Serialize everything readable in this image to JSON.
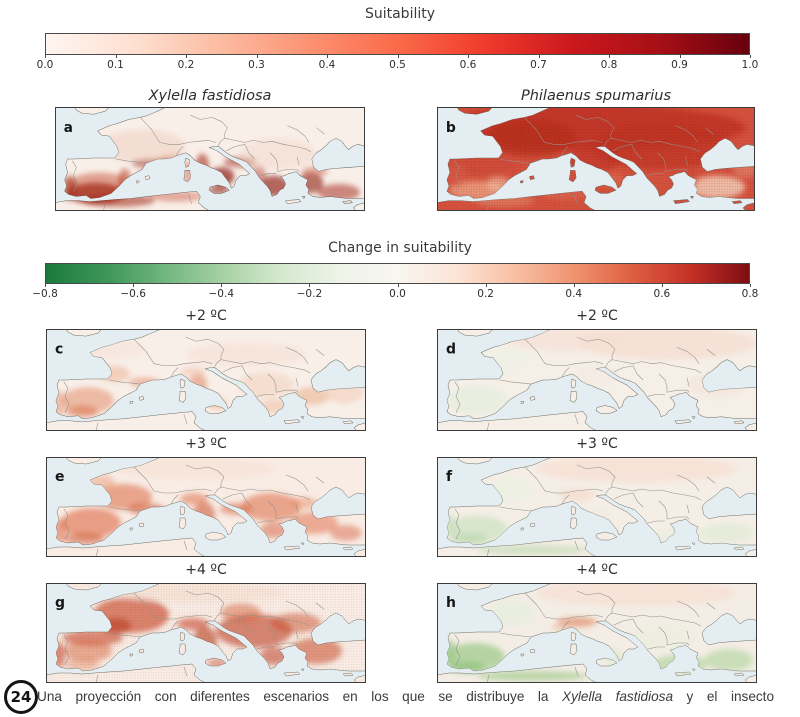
{
  "figure": {
    "sea_color": "#e4eef2",
    "coast_color": "#6e6e63",
    "border_color": "#92928a",
    "suitability_bar": {
      "title": "Suitability",
      "ticks": [
        "0.0",
        "0.1",
        "0.2",
        "0.3",
        "0.4",
        "0.5",
        "0.6",
        "0.7",
        "0.8",
        "0.9",
        "1.0"
      ],
      "colors": [
        "#fff5f0",
        "#fee0d2",
        "#fcbba1",
        "#fc9272",
        "#fb6a4a",
        "#ef3b2c",
        "#cb181d",
        "#a50f15",
        "#67000d"
      ]
    },
    "change_bar": {
      "title": "Change in suitability",
      "ticks": [
        "−0.8",
        "−0.6",
        "−0.4",
        "−0.2",
        "0.0",
        "0.2",
        "0.4",
        "0.6",
        "0.8"
      ],
      "colors": [
        "#1a7a3e",
        "#3d9558",
        "#6fb57e",
        "#a5d0a4",
        "#d4e8cd",
        "#eef3e8",
        "#f8f6f1",
        "#fce4d6",
        "#f8c0a5",
        "#ef9470",
        "#df5f42",
        "#c43127",
        "#7d0d11"
      ]
    },
    "panels": [
      {
        "letter": "a",
        "title": "Xylella fastidiosa",
        "species_title": true,
        "land": "#f9efe9",
        "stipple": 0,
        "blobs": [
          [
            42,
            83,
            30,
            10,
            "#8e1d10",
            0.85
          ],
          [
            46,
            76,
            34,
            13,
            "#c8523a",
            0.5
          ],
          [
            15,
            78,
            7,
            12,
            "#a5301c",
            0.6
          ],
          [
            72,
            71,
            7,
            12,
            "#b5371f",
            0.5
          ],
          [
            99,
            54,
            20,
            4.5,
            "#a5301c",
            0.65
          ],
          [
            120,
            50,
            13,
            4,
            "#c8523a",
            0.5
          ],
          [
            152,
            56,
            7,
            11,
            "#a5301c",
            0.6
          ],
          [
            172,
            67,
            13,
            9,
            "#8e1d10",
            0.7
          ],
          [
            169,
            80,
            11,
            4,
            "#8e1d10",
            0.6
          ],
          [
            137,
            64,
            4,
            12,
            "#c8523a",
            0.45
          ],
          [
            191,
            53,
            17,
            5,
            "#a5301c",
            0.55
          ],
          [
            210,
            64,
            8,
            8,
            "#b5371f",
            0.45
          ],
          [
            226,
            76,
            15,
            10,
            "#8e1d10",
            0.65
          ],
          [
            264,
            73,
            13,
            10,
            "#8e1d10",
            0.6
          ],
          [
            293,
            82,
            22,
            8,
            "#a5301c",
            0.55
          ],
          [
            268,
            62,
            14,
            5,
            "#c8523a",
            0.4
          ],
          [
            65,
            90,
            38,
            6,
            "#a5301c",
            0.6
          ],
          [
            125,
            86,
            28,
            5,
            "#c8523a",
            0.45
          ],
          [
            90,
            38,
            45,
            16,
            "#f0cdbd",
            0.5
          ],
          [
            230,
            45,
            40,
            15,
            "#f2d8c9",
            0.5
          ]
        ]
      },
      {
        "letter": "b",
        "title": "Philaenus spumarius",
        "species_title": true,
        "land": "#d4513d",
        "stipple": 0.45,
        "blobs": [
          [
            150,
            20,
            160,
            22,
            "#c13426",
            0.85
          ],
          [
            95,
            30,
            45,
            18,
            "#b52c1e",
            0.7
          ],
          [
            225,
            38,
            70,
            22,
            "#bf3325",
            0.7
          ],
          [
            160,
            50,
            25,
            14,
            "#c13426",
            0.6
          ],
          [
            45,
            55,
            35,
            10,
            "#cc4935",
            0.6
          ],
          [
            40,
            80,
            28,
            9,
            "#eda788",
            0.75
          ],
          [
            62,
            74,
            12,
            7,
            "#f2c3a6",
            0.6
          ],
          [
            20,
            65,
            10,
            12,
            "#d95e45",
            0.5
          ],
          [
            176,
            70,
            12,
            8,
            "#dd6d50",
            0.55
          ],
          [
            282,
            77,
            28,
            11,
            "#f3d3bb",
            0.8
          ],
          [
            255,
            68,
            8,
            12,
            "#cc4935",
            0.5
          ],
          [
            310,
            60,
            12,
            8,
            "#e8957a",
            0.5
          ],
          [
            68,
            90,
            30,
            6,
            "#e48a6c",
            0.6
          ],
          [
            130,
            84,
            25,
            5,
            "#dd7257",
            0.5
          ]
        ]
      },
      {
        "letter": "c",
        "title": "+2 ºC",
        "species_title": false,
        "land": "#f8efe9",
        "stipple": 0,
        "blobs": [
          [
            42,
            70,
            26,
            13,
            "#e4906c",
            0.55
          ],
          [
            36,
            81,
            16,
            6,
            "#d86a44",
            0.5
          ],
          [
            14,
            73,
            6,
            12,
            "#e4906c",
            0.5
          ],
          [
            68,
            44,
            16,
            8,
            "#efb497",
            0.55
          ],
          [
            98,
            52,
            15,
            5,
            "#e4906c",
            0.5
          ],
          [
            152,
            55,
            9,
            12,
            "#dd7e57",
            0.5
          ],
          [
            147,
            42,
            13,
            5,
            "#f2c3ab",
            0.5
          ],
          [
            171,
            73,
            10,
            6,
            "#e9a179",
            0.45
          ],
          [
            220,
            55,
            28,
            13,
            "#f4d3c0",
            0.6
          ],
          [
            265,
            66,
            18,
            9,
            "#eaa981",
            0.5
          ],
          [
            298,
            62,
            20,
            11,
            "#f2c8ae",
            0.5
          ],
          [
            228,
            76,
            13,
            7,
            "#eaa981",
            0.4
          ],
          [
            60,
            20,
            40,
            10,
            "#f7e3d8",
            0.6
          ],
          [
            200,
            25,
            60,
            12,
            "#f7e0d3",
            0.6
          ]
        ]
      },
      {
        "letter": "d",
        "title": "+2 ºC",
        "species_title": false,
        "land": "#f5efe8",
        "stipple": 0,
        "blobs": [
          [
            230,
            14,
            90,
            16,
            "#f6ddd2",
            0.8
          ],
          [
            130,
            10,
            60,
            12,
            "#f6ddd2",
            0.6
          ],
          [
            40,
            70,
            30,
            14,
            "#e6eedd",
            0.8
          ],
          [
            70,
            30,
            20,
            12,
            "#ebf1e4",
            0.6
          ],
          [
            280,
            55,
            30,
            12,
            "#f4e3d9",
            0.6
          ],
          [
            160,
            45,
            20,
            10,
            "#f3e8e0",
            0.5
          ]
        ]
      },
      {
        "letter": "e",
        "title": "+3 ºC",
        "species_title": false,
        "land": "#f8ece4",
        "stipple": 0,
        "blobs": [
          [
            45,
            66,
            30,
            15,
            "#dd6a44",
            0.6
          ],
          [
            38,
            82,
            20,
            6,
            "#cc4f2e",
            0.5
          ],
          [
            14,
            74,
            7,
            12,
            "#dd6a44",
            0.55
          ],
          [
            78,
            40,
            28,
            13,
            "#dd6a44",
            0.55
          ],
          [
            100,
            52,
            18,
            6,
            "#cc4f2e",
            0.5
          ],
          [
            56,
            26,
            13,
            8,
            "#e9a07c",
            0.5
          ],
          [
            148,
            42,
            14,
            6,
            "#dd6a44",
            0.5
          ],
          [
            158,
            58,
            11,
            13,
            "#cc4f2e",
            0.55
          ],
          [
            190,
            52,
            16,
            6,
            "#d65c3c",
            0.5
          ],
          [
            225,
            50,
            30,
            14,
            "#dd6a44",
            0.55
          ],
          [
            228,
            73,
            14,
            8,
            "#d65c3c",
            0.5
          ],
          [
            268,
            66,
            24,
            11,
            "#dd6a44",
            0.5
          ],
          [
            300,
            76,
            16,
            8,
            "#d65c3c",
            0.45
          ],
          [
            258,
            46,
            14,
            6,
            "#e68a62",
            0.45
          ],
          [
            150,
            12,
            80,
            10,
            "#f7e0d3",
            0.6
          ]
        ]
      },
      {
        "letter": "f",
        "title": "+3 ºC",
        "species_title": false,
        "land": "#f4eee6",
        "stipple": 0,
        "blobs": [
          [
            40,
            72,
            30,
            13,
            "#d2e4c6",
            0.85
          ],
          [
            33,
            82,
            18,
            6,
            "#bed9b0",
            0.7
          ],
          [
            14,
            70,
            6,
            12,
            "#cadfbd",
            0.7
          ],
          [
            95,
            93,
            55,
            5,
            "#bed9b0",
            0.6
          ],
          [
            290,
            76,
            26,
            10,
            "#dfead4",
            0.7
          ],
          [
            240,
            80,
            25,
            8,
            "#e4eeda",
            0.6
          ],
          [
            200,
            12,
            100,
            13,
            "#f8ded2",
            0.75
          ],
          [
            140,
            38,
            18,
            6,
            "#f6d5c6",
            0.6
          ],
          [
            75,
            32,
            20,
            12,
            "#e9f0e1",
            0.6
          ],
          [
            160,
            60,
            15,
            10,
            "#f0ece2",
            0.5
          ]
        ]
      },
      {
        "letter": "g",
        "title": "+4 ºC",
        "species_title": false,
        "land": "#f8ece4",
        "stipple": 0.25,
        "blobs": [
          [
            85,
            32,
            38,
            18,
            "#c94a2c",
            0.65
          ],
          [
            70,
            43,
            15,
            8,
            "#b83a20",
            0.6
          ],
          [
            47,
            55,
            30,
            8,
            "#c94a2c",
            0.6
          ],
          [
            42,
            68,
            24,
            11,
            "#d86a44",
            0.5
          ],
          [
            36,
            81,
            17,
            7,
            "#e08c63",
            0.45
          ],
          [
            13,
            72,
            6,
            13,
            "#c94a2c",
            0.6
          ],
          [
            147,
            41,
            16,
            6,
            "#c94a2c",
            0.6
          ],
          [
            159,
            58,
            12,
            14,
            "#b83a20",
            0.6
          ],
          [
            171,
            80,
            10,
            4,
            "#c94a2c",
            0.5
          ],
          [
            208,
            48,
            38,
            17,
            "#bf3f24",
            0.6
          ],
          [
            228,
            73,
            14,
            9,
            "#bf3f24",
            0.55
          ],
          [
            270,
            68,
            26,
            13,
            "#c94a2c",
            0.55
          ],
          [
            195,
            30,
            20,
            10,
            "#d86a44",
            0.5
          ],
          [
            250,
            40,
            25,
            10,
            "#cc522f",
            0.5
          ],
          [
            150,
            10,
            90,
            9,
            "#f6ddcf",
            0.6
          ]
        ]
      },
      {
        "letter": "h",
        "title": "+4 ºC",
        "species_title": false,
        "land": "#f3ede5",
        "stipple": 0,
        "blobs": [
          [
            38,
            74,
            30,
            14,
            "#abd098",
            0.85
          ],
          [
            30,
            84,
            18,
            6,
            "#92c37d",
            0.7
          ],
          [
            13,
            70,
            6,
            13,
            "#9fca8b",
            0.75
          ],
          [
            95,
            93,
            55,
            5,
            "#9fca8b",
            0.65
          ],
          [
            243,
            81,
            28,
            9,
            "#b8d7a5",
            0.75
          ],
          [
            292,
            77,
            24,
            11,
            "#b8d7a5",
            0.7
          ],
          [
            176,
            73,
            10,
            6,
            "#d2e4c4",
            0.6
          ],
          [
            140,
            39,
            20,
            5,
            "#e08a64",
            0.65
          ],
          [
            125,
            44,
            10,
            4,
            "#eeb394",
            0.5
          ],
          [
            200,
            10,
            100,
            13,
            "#f8ded2",
            0.7
          ],
          [
            75,
            30,
            22,
            13,
            "#e4eeda",
            0.6
          ],
          [
            225,
            55,
            30,
            12,
            "#e9efdd",
            0.6
          ]
        ]
      }
    ]
  },
  "caption": {
    "badge": "24",
    "segments": [
      {
        "text": "Una proyección con diferentes escenarios en los que se distribuye la ",
        "italic": false
      },
      {
        "text": "Xylella fastidiosa",
        "italic": true
      },
      {
        "text": " y el insecto",
        "italic": false
      }
    ]
  },
  "chart_data": {
    "type": "heatmap",
    "description": "Panel figure of habitat-suitability maps over Europe and the Mediterranean basin",
    "colorbars": [
      {
        "title": "Suitability",
        "range": [
          0.0,
          1.0
        ],
        "tick_step": 0.1,
        "palette": "white to dark red"
      },
      {
        "title": "Change in suitability",
        "range": [
          -0.8,
          0.8
        ],
        "tick_step": 0.2,
        "palette": "dark green - white - dark red"
      }
    ],
    "panels": [
      {
        "label": "a",
        "title": "Xylella fastidiosa",
        "variable": "suitability",
        "pattern": "high along Mediterranean coasts, southern Iberia, Italy, Greece, western Turkey, North African coast"
      },
      {
        "label": "b",
        "title": "Philaenus spumarius",
        "variable": "suitability",
        "pattern": "high across most of central and western Europe; lower in southern Iberia and interior Turkey; stippled"
      },
      {
        "label": "c",
        "title": "+2 ºC",
        "variable": "change in suitability, Xylella fastidiosa",
        "pattern": "moderate increases over inland Iberia, southern France, central Italy, north-west Turkey"
      },
      {
        "label": "d",
        "title": "+2 ºC",
        "variable": "change in suitability, Philaenus spumarius",
        "pattern": "near-neutral; faint decrease over Iberia, faint increase to the north-east"
      },
      {
        "label": "e",
        "title": "+3 ºC",
        "variable": "change in suitability, Xylella fastidiosa",
        "pattern": "stronger increases across Iberia, France, Italy, Balkans and Turkey"
      },
      {
        "label": "f",
        "title": "+3 ºC",
        "variable": "change in suitability, Philaenus spumarius",
        "pattern": "decreases (green) over southern Iberia and North Africa; slight increases in the north"
      },
      {
        "label": "g",
        "title": "+4 ºC",
        "variable": "change in suitability, Xylella fastidiosa",
        "pattern": "largest increases over France, northern Spain, Italy, Balkans, Turkey"
      },
      {
        "label": "h",
        "title": "+4 ºC",
        "variable": "change in suitability, Philaenus spumarius",
        "pattern": "strong decreases over Iberia, Greece, Turkey; localized increase over the Alps"
      }
    ]
  }
}
